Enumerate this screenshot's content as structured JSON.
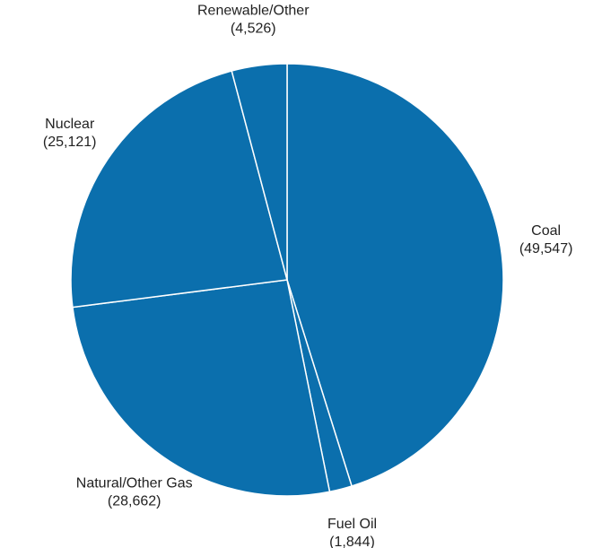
{
  "chart_data": {
    "type": "pie",
    "categories": [
      "Coal",
      "Fuel Oil",
      "Natural/Other Gas",
      "Nuclear",
      "Renewable/Other"
    ],
    "values": [
      49547,
      1844,
      28662,
      25121,
      4526
    ],
    "value_labels": [
      "(49,547)",
      "(1,844)",
      "(28,662)",
      "(25,121)",
      "(4,526)"
    ],
    "color": "#0b6fad"
  }
}
